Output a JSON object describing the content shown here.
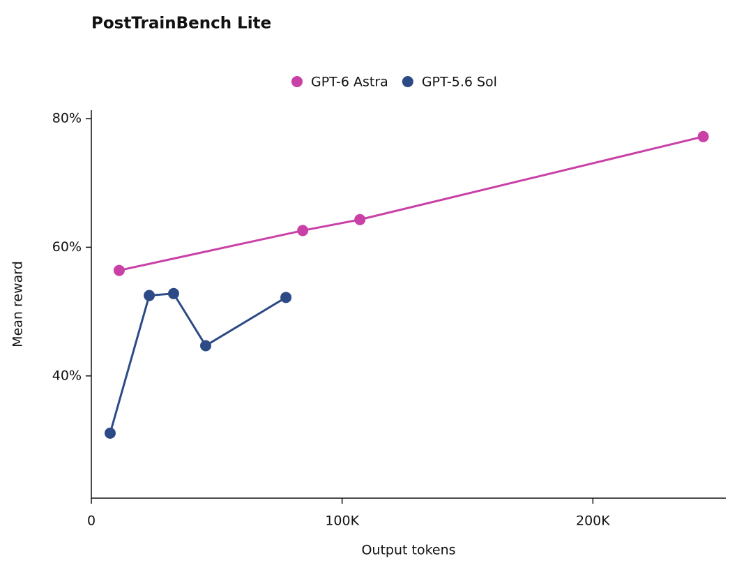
{
  "chart_data": {
    "type": "line",
    "title": "PostTrainBench Lite",
    "x_label": "Output tokens",
    "y_label": "Mean reward",
    "series": [
      {
        "name": "GPT-6 Astra",
        "color": "#c940a6",
        "x": [
          11100,
          84300,
          107100,
          244000
        ],
        "values": [
          56.4,
          62.6,
          64.3,
          77.2
        ]
      },
      {
        "name": "GPT-5.6 Sol",
        "color": "#2c4a85",
        "x": [
          7500,
          23100,
          32800,
          45600,
          77600
        ],
        "values": [
          31.1,
          52.5,
          52.8,
          44.7,
          52.2
        ]
      }
    ],
    "xlim": [
      0,
      253000
    ],
    "ylim": [
      21,
      81.3
    ],
    "xticks": [
      0,
      {
        "value": 100000,
        "label": "100K"
      },
      {
        "value": 200000,
        "label": "200K"
      }
    ],
    "yticks": [
      {
        "value": 40,
        "label": "40%"
      },
      {
        "value": 60,
        "label": "60%"
      },
      {
        "value": 80,
        "label": "80%"
      }
    ],
    "grid": false,
    "legend": "top"
  }
}
